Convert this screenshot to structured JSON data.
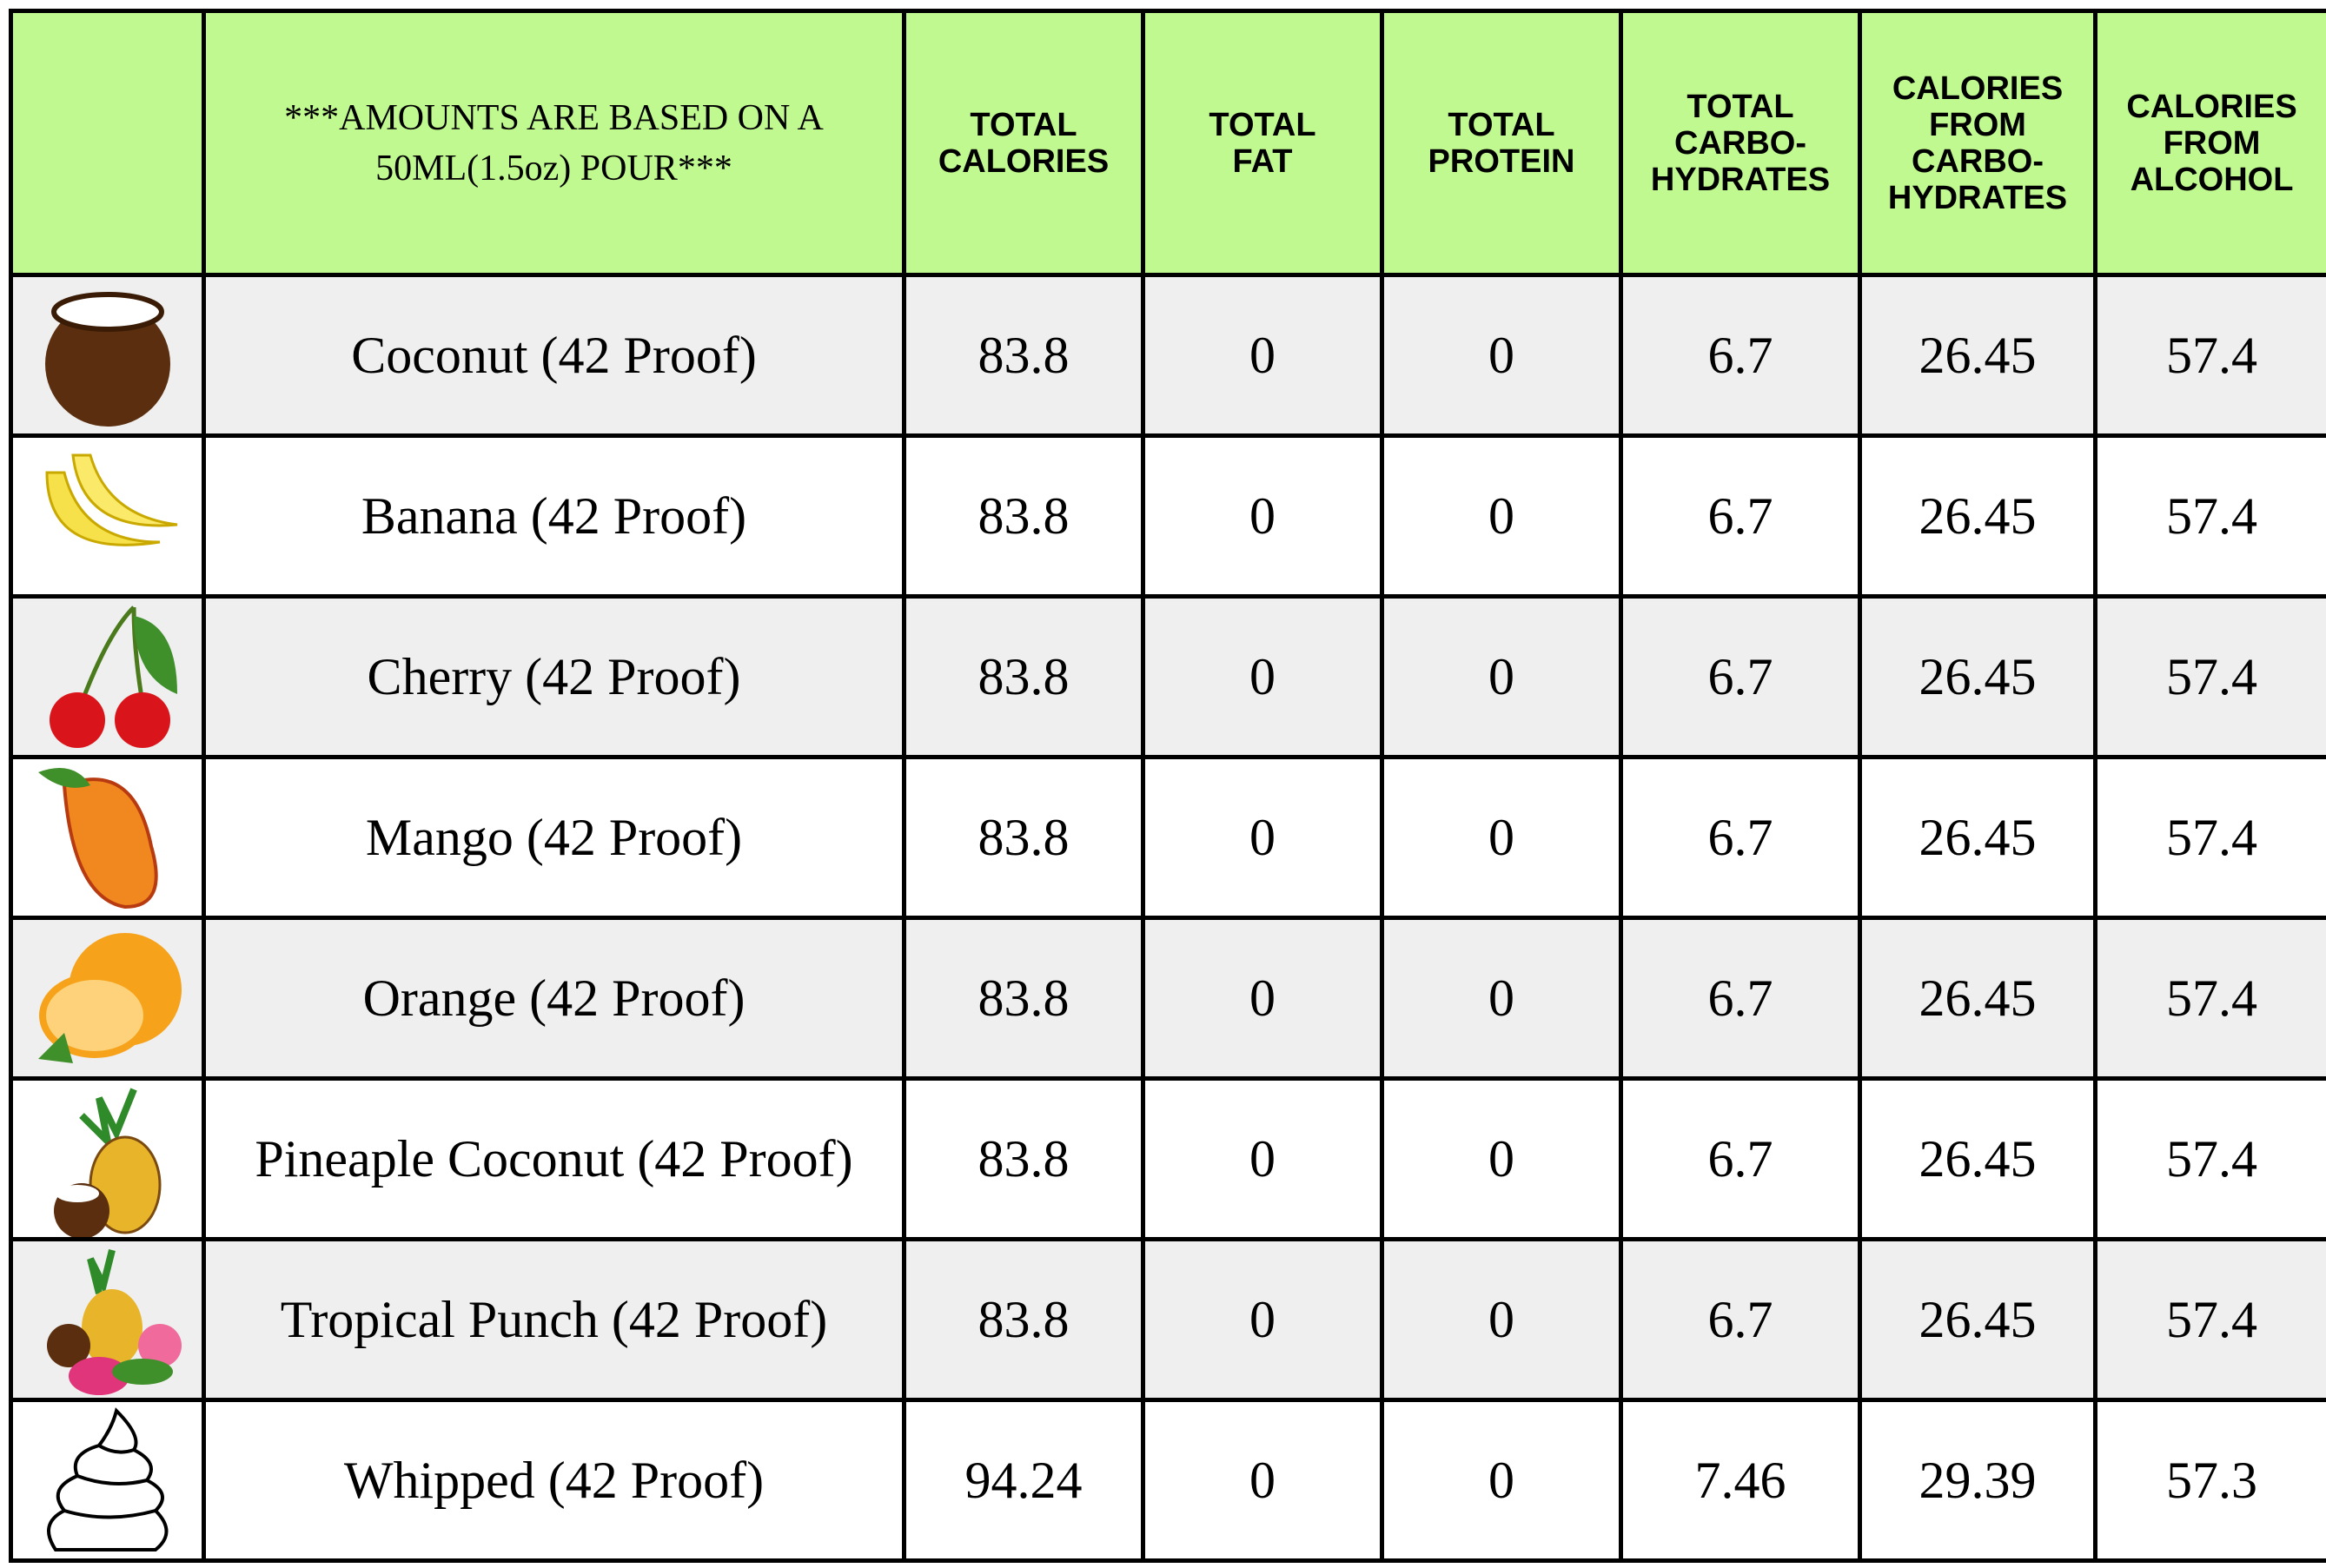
{
  "table": {
    "header": {
      "note": [
        "***AMOUNTS ARE BASED ON A",
        "50ML(1.5oz) POUR***"
      ],
      "columns": [
        [
          "TOTAL",
          "CALORIES"
        ],
        [
          "TOTAL",
          "FAT"
        ],
        [
          "TOTAL",
          "PROTEIN"
        ],
        [
          "TOTAL",
          "CARBO-",
          "HYDRATES"
        ],
        [
          "CALORIES",
          "FROM",
          "CARBO-",
          "HYDRATES"
        ],
        [
          "CALORIES",
          "FROM",
          "ALCOHOL"
        ]
      ]
    },
    "rows": [
      {
        "name": "Coconut (42 Proof)",
        "values": [
          83.8,
          0,
          0,
          6.7,
          26.45,
          57.4
        ]
      },
      {
        "name": "Banana (42 Proof)",
        "values": [
          83.8,
          0,
          0,
          6.7,
          26.45,
          57.4
        ]
      },
      {
        "name": "Cherry (42 Proof)",
        "values": [
          83.8,
          0,
          0,
          6.7,
          26.45,
          57.4
        ]
      },
      {
        "name": "Mango (42 Proof)",
        "values": [
          83.8,
          0,
          0,
          6.7,
          26.45,
          57.4
        ]
      },
      {
        "name": "Orange (42 Proof)",
        "values": [
          83.8,
          0,
          0,
          6.7,
          26.45,
          57.4
        ]
      },
      {
        "name": "Pineaple Coconut (42 Proof)",
        "values": [
          83.8,
          0,
          0,
          6.7,
          26.45,
          57.4
        ]
      },
      {
        "name": "Tropical Punch (42 Proof)",
        "values": [
          83.8,
          0,
          0,
          6.7,
          26.45,
          57.4
        ]
      },
      {
        "name": "Whipped (42 Proof)",
        "values": [
          94.24,
          0,
          0,
          7.46,
          29.39,
          57.3
        ]
      }
    ]
  }
}
